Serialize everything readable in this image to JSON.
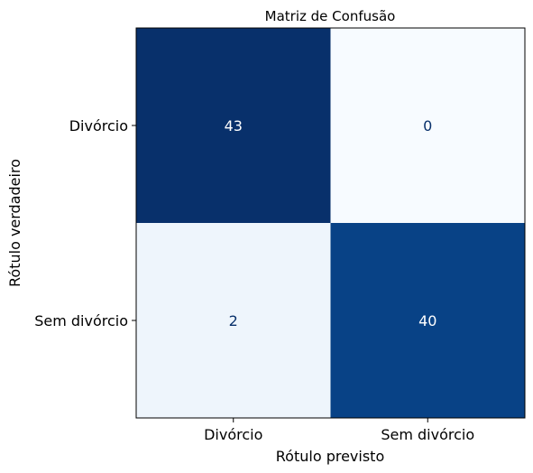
{
  "chart_data": {
    "type": "heatmap",
    "title": "Matriz de Confusão",
    "xlabel": "Rótulo previsto",
    "ylabel": "Rótulo verdadeiro",
    "x_categories": [
      "Divórcio",
      "Sem divórcio"
    ],
    "y_categories": [
      "Divórcio",
      "Sem divórcio"
    ],
    "values": [
      [
        43,
        0
      ],
      [
        2,
        40
      ]
    ],
    "colormap": "Blues",
    "colors": {
      "low": "#f7fbff",
      "high": "#08306b",
      "text_dark_bg": "#ffffff",
      "text_light_bg": "#08306b"
    }
  }
}
